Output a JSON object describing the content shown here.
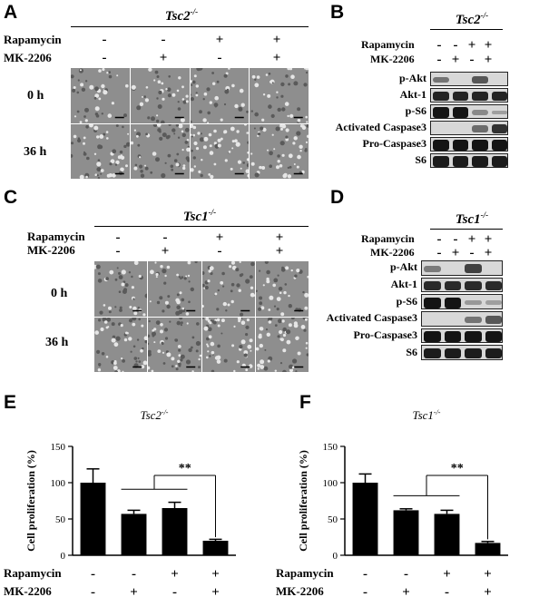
{
  "panels": {
    "A": {
      "letter": "A",
      "title": "Tsc2",
      "title_sup": "-/-",
      "rows": [
        {
          "label": "Rapamycin",
          "signs": [
            "-",
            "-",
            "+",
            "+"
          ]
        },
        {
          "label": "MK-2206",
          "signs": [
            "-",
            "+",
            "-",
            "+"
          ]
        }
      ],
      "time_labels": [
        "0 h",
        "36 h"
      ]
    },
    "B": {
      "letter": "B",
      "title": "Tsc2",
      "title_sup": "-/-",
      "rows": [
        {
          "label": "Rapamycin",
          "signs": [
            "-",
            "-",
            "+",
            "+"
          ]
        },
        {
          "label": "MK-2206",
          "signs": [
            "-",
            "+",
            "-",
            "+"
          ]
        }
      ],
      "blots": [
        {
          "label": "p-Akt",
          "intensity": [
            0.35,
            0.0,
            0.55,
            0.0
          ]
        },
        {
          "label": "Akt-1",
          "intensity": [
            0.9,
            0.9,
            0.9,
            0.9
          ]
        },
        {
          "label": "p-S6",
          "intensity": [
            1.0,
            1.0,
            0.2,
            0.05
          ]
        },
        {
          "label": "Activated Caspase3",
          "intensity": [
            0.0,
            0.0,
            0.4,
            0.8
          ]
        },
        {
          "label": "Pro-Caspase3",
          "intensity": [
            1.0,
            1.0,
            1.0,
            1.0
          ]
        },
        {
          "label": "S6",
          "intensity": [
            0.95,
            0.95,
            0.95,
            0.95
          ]
        }
      ]
    },
    "C": {
      "letter": "C",
      "title": "Tsc1",
      "title_sup": "-/-",
      "rows": [
        {
          "label": "Rapamycin",
          "signs": [
            "-",
            "-",
            "+",
            "+"
          ]
        },
        {
          "label": "MK-2206",
          "signs": [
            "-",
            "+",
            "-",
            "+"
          ]
        }
      ],
      "time_labels": [
        "0 h",
        "36 h"
      ]
    },
    "D": {
      "letter": "D",
      "title": "Tsc1",
      "title_sup": "-/-",
      "rows": [
        {
          "label": "Rapamycin",
          "signs": [
            "-",
            "-",
            "+",
            "+"
          ]
        },
        {
          "label": "MK-2206",
          "signs": [
            "-",
            "+",
            "-",
            "+"
          ]
        }
      ],
      "blots": [
        {
          "label": "p-Akt",
          "intensity": [
            0.3,
            0.0,
            0.7,
            0.0
          ]
        },
        {
          "label": "Akt-1",
          "intensity": [
            0.85,
            0.85,
            0.85,
            0.85
          ]
        },
        {
          "label": "p-S6",
          "intensity": [
            1.0,
            1.0,
            0.1,
            0.05
          ]
        },
        {
          "label": "Activated Caspase3",
          "intensity": [
            0.0,
            0.0,
            0.35,
            0.55
          ]
        },
        {
          "label": "Pro-Caspase3",
          "intensity": [
            1.0,
            1.0,
            1.0,
            1.0
          ]
        },
        {
          "label": "S6",
          "intensity": [
            0.95,
            0.95,
            0.95,
            0.95
          ]
        }
      ]
    }
  },
  "chart_data": [
    {
      "panel": "E",
      "type": "bar",
      "title": "Tsc2",
      "title_sup": "-/-",
      "ylabel": "Cell proliferation (%)",
      "ylim": [
        0,
        150
      ],
      "yticks": [
        0,
        50,
        100,
        150
      ],
      "categories": [
        "1",
        "2",
        "3",
        "4"
      ],
      "values": [
        100,
        57,
        65,
        20
      ],
      "errors": [
        19,
        5,
        8,
        2
      ],
      "significance": "**",
      "treatments": [
        {
          "label": "Rapamycin",
          "signs": [
            "-",
            "-",
            "+",
            "+"
          ]
        },
        {
          "label": "MK-2206",
          "signs": [
            "-",
            "+",
            "-",
            "+"
          ]
        }
      ]
    },
    {
      "panel": "F",
      "type": "bar",
      "title": "Tsc1",
      "title_sup": "-/-",
      "ylabel": "Cell proliferation (%)",
      "ylim": [
        0,
        150
      ],
      "yticks": [
        0,
        50,
        100,
        150
      ],
      "categories": [
        "1",
        "2",
        "3",
        "4"
      ],
      "values": [
        100,
        62,
        57,
        17
      ],
      "errors": [
        12,
        2,
        5,
        2
      ],
      "significance": "**",
      "treatments": [
        {
          "label": "Rapamycin",
          "signs": [
            "-",
            "-",
            "+",
            "+"
          ]
        },
        {
          "label": "MK-2206",
          "signs": [
            "-",
            "+",
            "-",
            "+"
          ]
        }
      ]
    }
  ]
}
